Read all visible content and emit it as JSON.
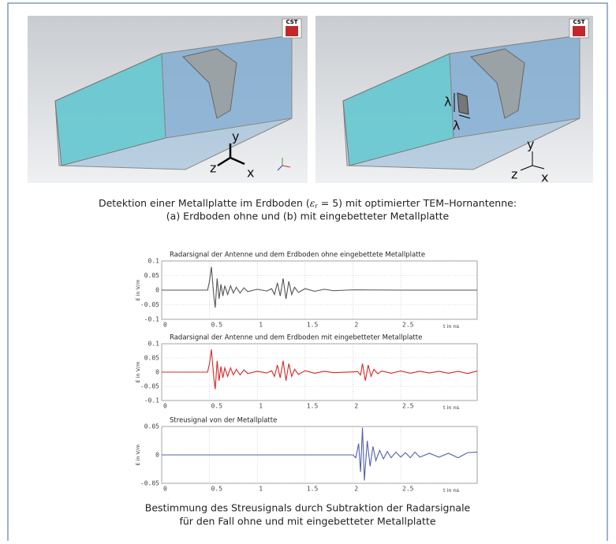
{
  "figure_a": {
    "logo": "CST",
    "axes": [
      "y",
      "z",
      "x"
    ]
  },
  "figure_b": {
    "logo": "CST",
    "axes": [
      "y",
      "z",
      "x"
    ],
    "lambda": [
      "λ",
      "λ"
    ]
  },
  "caption_top": {
    "line1_before": "Detektion einer Metallplatte im Erdboden (",
    "symbol": "ε",
    "subscript": "r",
    "line1_after": " = 5) mit optimierter TEM–Hornantenne:",
    "line2": "(a) Erdboden ohne und (b) mit eingebetteter Metallplatte"
  },
  "chart_data": [
    {
      "type": "line",
      "title": "Radarsignal der Antenne und dem Erdboden ohne eingebettete Metallplatte",
      "xlabel": "t in ns",
      "ylabel": "E in V/m",
      "color": "#555555",
      "grid": true,
      "xlim": [
        0,
        3.3
      ],
      "xticks": [
        0,
        0.5,
        1,
        1.5,
        2,
        2.5
      ],
      "ylim": [
        -0.1,
        0.1
      ],
      "yticks": [
        -0.1,
        -0.05,
        0,
        0.05,
        0.1
      ],
      "x": [
        0,
        0.48,
        0.5,
        0.52,
        0.545,
        0.56,
        0.58,
        0.6,
        0.62,
        0.64,
        0.66,
        0.69,
        0.72,
        0.75,
        0.78,
        0.82,
        0.86,
        0.9,
        1.0,
        1.1,
        1.15,
        1.18,
        1.21,
        1.24,
        1.27,
        1.3,
        1.33,
        1.36,
        1.39,
        1.43,
        1.5,
        1.6,
        1.7,
        1.8,
        2.0,
        2.5,
        3.3
      ],
      "values": [
        0,
        0,
        0.03,
        0.08,
        -0.02,
        -0.06,
        0.04,
        -0.03,
        0.02,
        -0.02,
        0.015,
        -0.015,
        0.015,
        -0.01,
        0.01,
        -0.01,
        0.008,
        -0.005,
        0.003,
        -0.003,
        0.005,
        -0.015,
        0.025,
        -0.02,
        0.04,
        -0.03,
        0.03,
        -0.015,
        0.01,
        -0.008,
        0.005,
        -0.004,
        0.003,
        -0.002,
        0.001,
        0,
        0
      ]
    },
    {
      "type": "line",
      "title": "Radarsignal der Antenne und dem Erdboden mit eingebetteter Metallplatte",
      "xlabel": "t in ns",
      "ylabel": "E in V/m",
      "color": "#d42a2a",
      "grid": true,
      "xlim": [
        0,
        3.3
      ],
      "xticks": [
        0,
        0.5,
        1,
        1.5,
        2,
        2.5
      ],
      "ylim": [
        -0.1,
        0.1
      ],
      "yticks": [
        -0.1,
        -0.05,
        0,
        0.05,
        0.1
      ],
      "x": [
        0,
        0.48,
        0.5,
        0.52,
        0.545,
        0.56,
        0.58,
        0.6,
        0.62,
        0.64,
        0.66,
        0.69,
        0.72,
        0.75,
        0.78,
        0.82,
        0.86,
        0.9,
        1.0,
        1.1,
        1.15,
        1.18,
        1.21,
        1.24,
        1.27,
        1.3,
        1.33,
        1.36,
        1.39,
        1.43,
        1.5,
        1.6,
        1.7,
        1.8,
        2.0,
        2.05,
        2.08,
        2.1,
        2.13,
        2.16,
        2.19,
        2.22,
        2.26,
        2.3,
        2.4,
        2.5,
        2.6,
        2.7,
        2.8,
        2.9,
        3.0,
        3.1,
        3.2,
        3.3
      ],
      "values": [
        0,
        0,
        0.03,
        0.08,
        -0.02,
        -0.06,
        0.04,
        -0.03,
        0.02,
        -0.02,
        0.015,
        -0.015,
        0.015,
        -0.01,
        0.01,
        -0.01,
        0.008,
        -0.005,
        0.003,
        -0.003,
        0.005,
        -0.015,
        0.025,
        -0.02,
        0.04,
        -0.03,
        0.03,
        -0.015,
        0.01,
        -0.008,
        0.005,
        -0.004,
        0.003,
        -0.002,
        0.001,
        0.002,
        -0.01,
        0.03,
        -0.03,
        0.025,
        -0.015,
        0.01,
        -0.006,
        0.004,
        -0.004,
        0.004,
        -0.004,
        0.003,
        -0.003,
        0.003,
        -0.004,
        0.003,
        -0.005,
        0.004
      ]
    },
    {
      "type": "line",
      "title": "Streusignal von der Metallplatte",
      "xlabel": "t in ns",
      "ylabel": "E in V/m",
      "color": "#5560a8",
      "grid": true,
      "xlim": [
        0,
        3.3
      ],
      "xticks": [
        0,
        0.5,
        1,
        1.5,
        2,
        2.5
      ],
      "ylim": [
        -0.05,
        0.05
      ],
      "yticks": [
        -0.05,
        0,
        0.05
      ],
      "x": [
        0,
        2.0,
        2.03,
        2.06,
        2.08,
        2.1,
        2.12,
        2.15,
        2.18,
        2.21,
        2.24,
        2.28,
        2.32,
        2.36,
        2.4,
        2.45,
        2.5,
        2.55,
        2.6,
        2.65,
        2.7,
        2.8,
        2.9,
        3.0,
        3.1,
        3.2,
        3.3
      ],
      "values": [
        0,
        0,
        -0.005,
        0.02,
        -0.03,
        0.048,
        -0.045,
        0.025,
        -0.02,
        0.015,
        -0.01,
        0.008,
        -0.007,
        0.006,
        -0.005,
        0.005,
        -0.004,
        0.004,
        -0.005,
        0.005,
        -0.004,
        0.003,
        -0.004,
        0.003,
        -0.005,
        0.004,
        0.005
      ]
    }
  ],
  "caption_bottom": {
    "line1": "Bestimmung des Streusignals durch Subtraktion der Radarsignale",
    "line2": "für den Fall ohne und mit eingebetteter Metallplatte"
  }
}
